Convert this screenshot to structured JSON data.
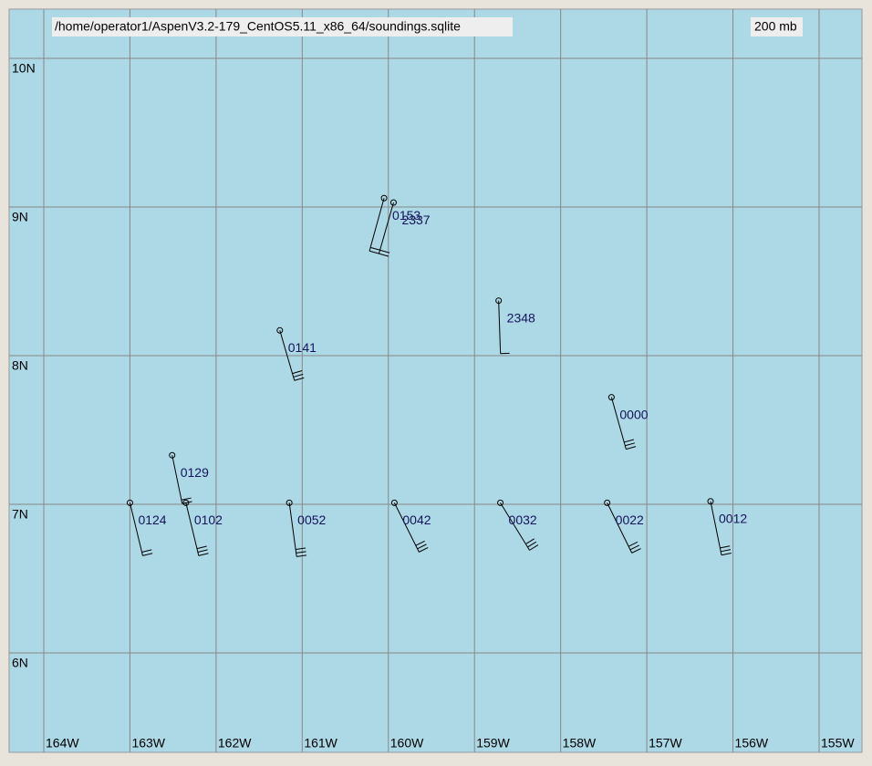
{
  "header": {
    "path": "/home/operator1/AspenV3.2-179_CentOS5.11_x86_64/soundings.sqlite",
    "level": "200 mb"
  },
  "lat_ticks": [
    {
      "value": 10,
      "label": "10N"
    },
    {
      "value": 9,
      "label": "9N"
    },
    {
      "value": 8,
      "label": "8N"
    },
    {
      "value": 7,
      "label": "7N"
    },
    {
      "value": 6,
      "label": "6N"
    }
  ],
  "lon_ticks": [
    {
      "value": -164,
      "label": "164W"
    },
    {
      "value": -163,
      "label": "163W"
    },
    {
      "value": -162,
      "label": "162W"
    },
    {
      "value": -161,
      "label": "161W"
    },
    {
      "value": -160,
      "label": "160W"
    },
    {
      "value": -159,
      "label": "159W"
    },
    {
      "value": -158,
      "label": "158W"
    },
    {
      "value": -157,
      "label": "157W"
    },
    {
      "value": -156,
      "label": "156W"
    },
    {
      "value": -155,
      "label": "155W"
    }
  ],
  "stations": [
    {
      "label": "0153",
      "lat": 9.06,
      "lon": -160.05
    },
    {
      "label": "2337",
      "lat": 9.03,
      "lon": -159.94
    },
    {
      "label": "2348",
      "lat": 8.37,
      "lon": -158.72
    },
    {
      "label": "0141",
      "lat": 8.17,
      "lon": -161.26
    },
    {
      "label": "0000",
      "lat": 7.72,
      "lon": -157.41
    },
    {
      "label": "0129",
      "lat": 7.33,
      "lon": -162.51
    },
    {
      "label": "0124",
      "lat": 7.01,
      "lon": -163.0
    },
    {
      "label": "0102",
      "lat": 7.01,
      "lon": -162.35
    },
    {
      "label": "0052",
      "lat": 7.01,
      "lon": -161.15
    },
    {
      "label": "0042",
      "lat": 7.01,
      "lon": -159.93
    },
    {
      "label": "0032",
      "lat": 7.01,
      "lon": -158.7
    },
    {
      "label": "0022",
      "lat": 7.01,
      "lon": -157.46
    },
    {
      "label": "0012",
      "lat": 7.02,
      "lon": -156.26
    }
  ]
}
